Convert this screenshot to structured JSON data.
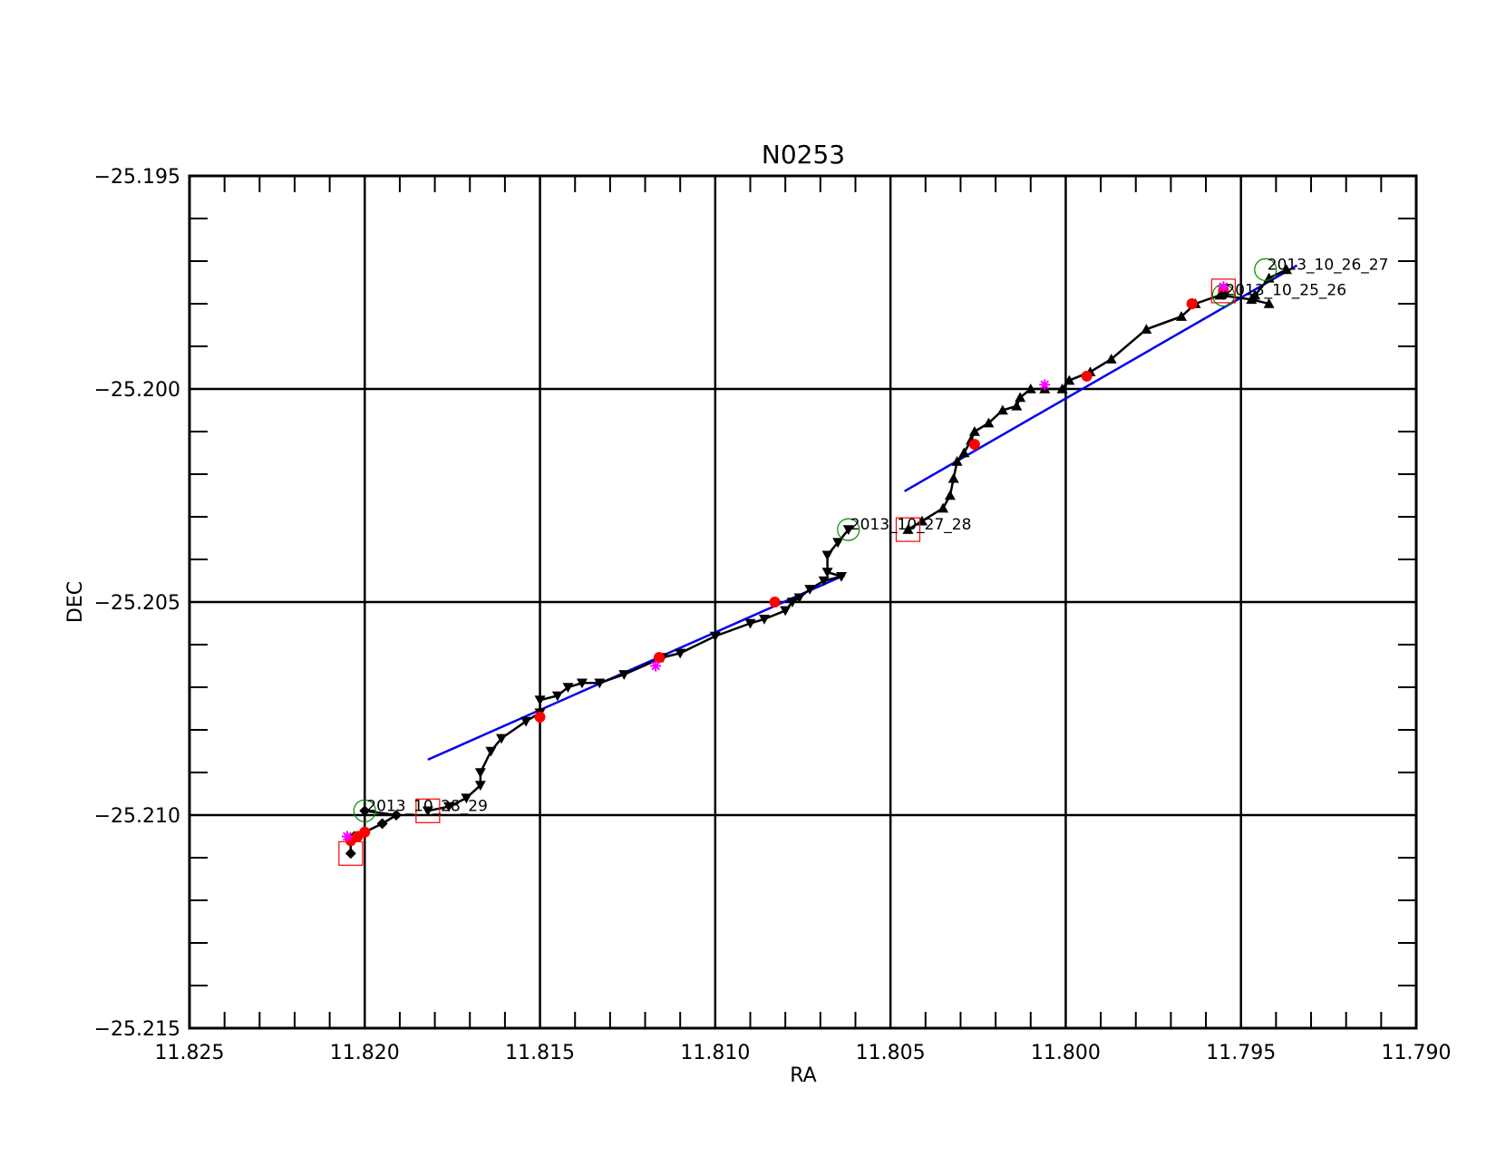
{
  "chart_data": {
    "type": "scatter",
    "title": "N0253",
    "xlabel": "RA",
    "ylabel": "DEC",
    "xlim": [
      11.825,
      11.79
    ],
    "ylim": [
      -25.215,
      -25.195
    ],
    "x_reversed": true,
    "x_ticks": [
      "11.825",
      "11.820",
      "11.815",
      "11.810",
      "11.805",
      "11.800",
      "11.795",
      "11.790"
    ],
    "y_ticks": [
      "−25.195",
      "−25.200",
      "−25.205",
      "−25.210",
      "−25.215"
    ],
    "grid": true,
    "colors": {
      "track": "#000000",
      "fit_line": "#0000ee",
      "red_point": "#ff0000",
      "star": "#ff00ff",
      "circle": "#008800",
      "square": "#ff0000"
    },
    "fit_lines": [
      {
        "x": [
          11.8182,
          11.8064
        ],
        "y": [
          -25.2087,
          -25.2044
        ]
      },
      {
        "x": [
          11.8046,
          11.7934
        ],
        "y": [
          -25.2024,
          -25.1971
        ]
      }
    ],
    "tracks": [
      {
        "label": "2013_10_25_26",
        "marker": "triangle-up",
        "points": [
          {
            "x": 11.7946,
            "y": -25.1978
          },
          {
            "x": 11.7942,
            "y": -25.1974
          },
          {
            "x": 11.7937,
            "y": -25.1972
          }
        ]
      },
      {
        "label": "2013_10_26_27",
        "marker": "triangle-up",
        "points": [
          {
            "x": 11.7942,
            "y": -25.198
          },
          {
            "x": 11.7947,
            "y": -25.1979
          },
          {
            "x": 11.7956,
            "y": -25.1978
          },
          {
            "x": 11.7963,
            "y": -25.198
          },
          {
            "x": 11.7967,
            "y": -25.1983
          },
          {
            "x": 11.7977,
            "y": -25.1986
          },
          {
            "x": 11.7987,
            "y": -25.1993
          },
          {
            "x": 11.7993,
            "y": -25.1996
          },
          {
            "x": 11.7999,
            "y": -25.1998
          },
          {
            "x": 11.8001,
            "y": -25.2
          },
          {
            "x": 11.8006,
            "y": -25.2
          },
          {
            "x": 11.801,
            "y": -25.2
          },
          {
            "x": 11.8013,
            "y": -25.2002
          },
          {
            "x": 11.8014,
            "y": -25.2004
          },
          {
            "x": 11.8018,
            "y": -25.2005
          },
          {
            "x": 11.8022,
            "y": -25.2008
          },
          {
            "x": 11.8026,
            "y": -25.201
          },
          {
            "x": 11.8027,
            "y": -25.2012
          },
          {
            "x": 11.8029,
            "y": -25.2015
          },
          {
            "x": 11.8031,
            "y": -25.2017
          },
          {
            "x": 11.8032,
            "y": -25.2021
          },
          {
            "x": 11.8033,
            "y": -25.2025
          },
          {
            "x": 11.8035,
            "y": -25.2028
          },
          {
            "x": 11.8041,
            "y": -25.2031
          },
          {
            "x": 11.8045,
            "y": -25.2033
          }
        ]
      },
      {
        "label": "2013_10_27_28",
        "marker": "triangle-down",
        "points": [
          {
            "x": 11.8062,
            "y": -25.2033
          },
          {
            "x": 11.8065,
            "y": -25.2036
          },
          {
            "x": 11.8068,
            "y": -25.2039
          },
          {
            "x": 11.8068,
            "y": -25.2043
          },
          {
            "x": 11.8064,
            "y": -25.2044
          },
          {
            "x": 11.8069,
            "y": -25.2045
          },
          {
            "x": 11.8073,
            "y": -25.2047
          },
          {
            "x": 11.8076,
            "y": -25.2049
          },
          {
            "x": 11.8078,
            "y": -25.205
          },
          {
            "x": 11.808,
            "y": -25.2052
          },
          {
            "x": 11.8086,
            "y": -25.2054
          },
          {
            "x": 11.809,
            "y": -25.2055
          },
          {
            "x": 11.81,
            "y": -25.2058
          },
          {
            "x": 11.811,
            "y": -25.2062
          },
          {
            "x": 11.8115,
            "y": -25.2063
          },
          {
            "x": 11.8126,
            "y": -25.2067
          },
          {
            "x": 11.8133,
            "y": -25.2069
          },
          {
            "x": 11.8138,
            "y": -25.2069
          },
          {
            "x": 11.8142,
            "y": -25.207
          },
          {
            "x": 11.8145,
            "y": -25.2072
          },
          {
            "x": 11.815,
            "y": -25.2073
          },
          {
            "x": 11.815,
            "y": -25.2076
          },
          {
            "x": 11.8154,
            "y": -25.2078
          },
          {
            "x": 11.8161,
            "y": -25.2082
          },
          {
            "x": 11.8164,
            "y": -25.2085
          },
          {
            "x": 11.8167,
            "y": -25.209
          },
          {
            "x": 11.8167,
            "y": -25.2093
          },
          {
            "x": 11.8171,
            "y": -25.2096
          },
          {
            "x": 11.8176,
            "y": -25.2098
          },
          {
            "x": 11.8182,
            "y": -25.2099
          }
        ]
      },
      {
        "label": "2013_10_28_29",
        "marker": "diamond",
        "points": [
          {
            "x": 11.82,
            "y": -25.2099
          },
          {
            "x": 11.8191,
            "y": -25.21
          },
          {
            "x": 11.8195,
            "y": -25.2102
          },
          {
            "x": 11.82,
            "y": -25.2104
          },
          {
            "x": 11.8203,
            "y": -25.2105
          },
          {
            "x": 11.8204,
            "y": -25.2106
          },
          {
            "x": 11.8204,
            "y": -25.2109
          }
        ]
      }
    ],
    "red_points": [
      {
        "x": 11.7955,
        "y": -25.1977
      },
      {
        "x": 11.7964,
        "y": -25.198
      },
      {
        "x": 11.7994,
        "y": -25.1997
      },
      {
        "x": 11.8026,
        "y": -25.2013
      },
      {
        "x": 11.8083,
        "y": -25.205
      },
      {
        "x": 11.8116,
        "y": -25.2063
      },
      {
        "x": 11.815,
        "y": -25.2077
      },
      {
        "x": 11.82,
        "y": -25.2104
      },
      {
        "x": 11.8202,
        "y": -25.2105
      },
      {
        "x": 11.8204,
        "y": -25.2106
      }
    ],
    "black_points": [
      {
        "x": 11.7955,
        "y": -25.1978
      }
    ],
    "star_points": [
      {
        "x": 11.7955,
        "y": -25.1976
      },
      {
        "x": 11.8006,
        "y": -25.1999
      },
      {
        "x": 11.8117,
        "y": -25.2065
      },
      {
        "x": 11.8205,
        "y": -25.2105
      }
    ],
    "circles": [
      {
        "x": 11.7943,
        "y": -25.1972
      },
      {
        "x": 11.7955,
        "y": -25.1978
      },
      {
        "x": 11.8062,
        "y": -25.2033
      },
      {
        "x": 11.82,
        "y": -25.2099
      }
    ],
    "squares": [
      {
        "x": 11.7955,
        "y": -25.1977
      },
      {
        "x": 11.8045,
        "y": -25.2033
      },
      {
        "x": 11.8182,
        "y": -25.2099
      },
      {
        "x": 11.8204,
        "y": -25.2109
      }
    ],
    "annotations": [
      {
        "text": "2013_10_26_27",
        "x": 11.7943,
        "y": -25.1972
      },
      {
        "text": "2013_10_25_26",
        "x": 11.7955,
        "y": -25.1978
      },
      {
        "text": "2013_10_27_28",
        "x": 11.8062,
        "y": -25.2033
      },
      {
        "text": "2013_10_28_29",
        "x": 11.82,
        "y": -25.2099
      }
    ]
  }
}
